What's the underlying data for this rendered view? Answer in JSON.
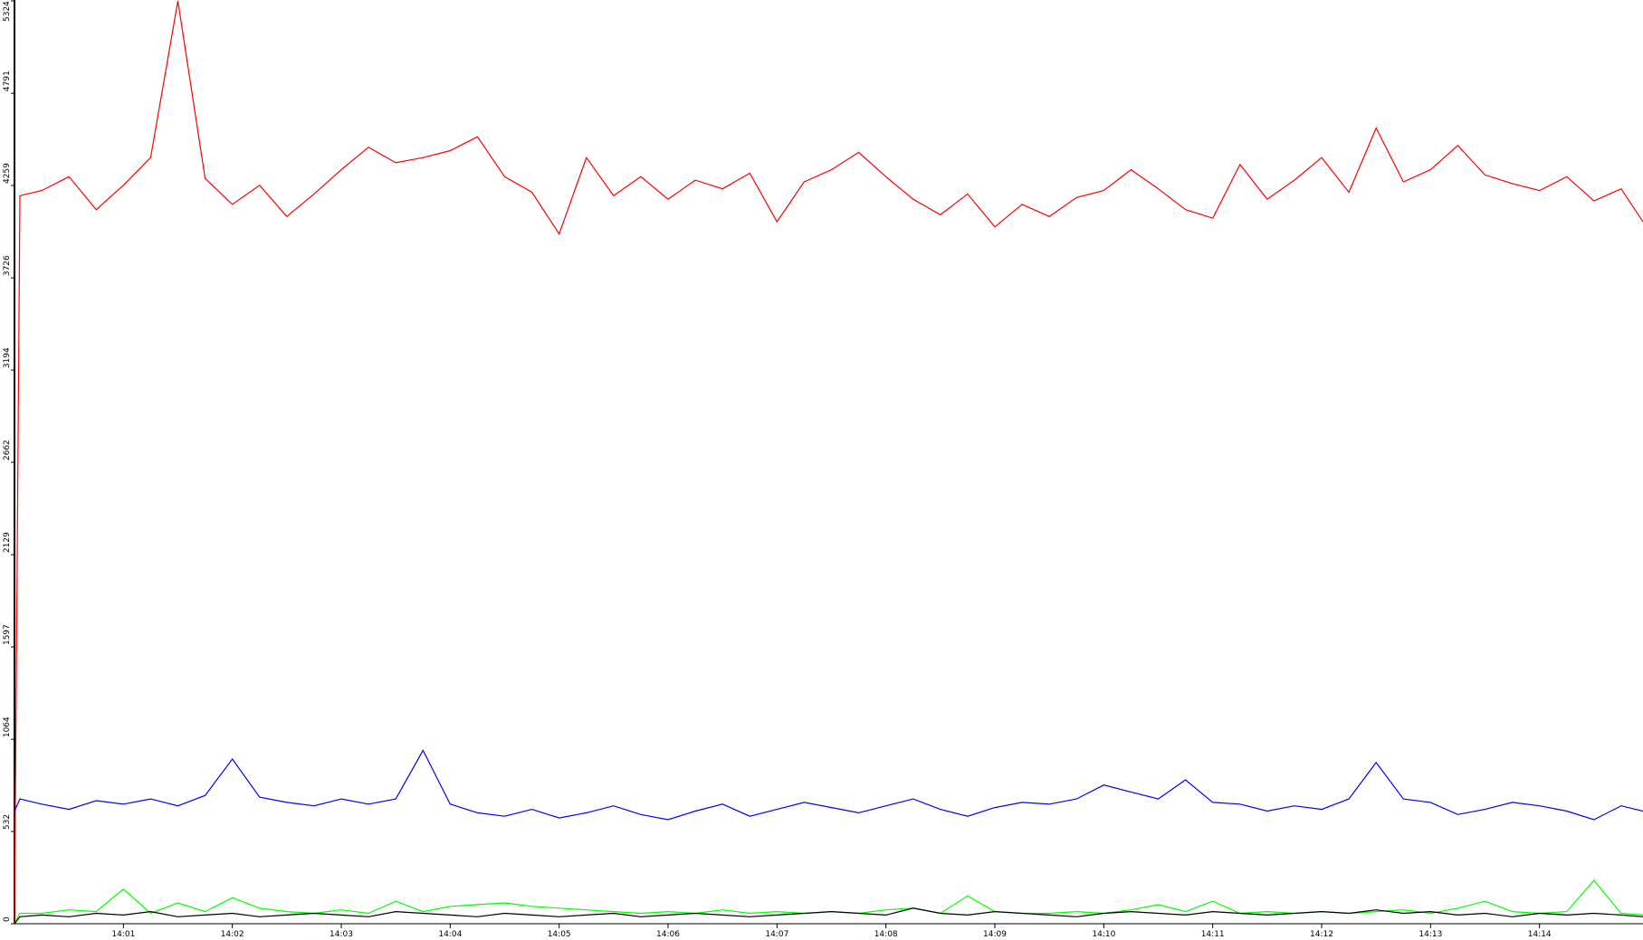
{
  "chart_data": {
    "type": "line",
    "x": [
      0,
      0.05,
      0.25,
      0.5,
      0.75,
      1,
      1.25,
      1.5,
      1.75,
      2,
      2.25,
      2.5,
      2.75,
      3,
      3.25,
      3.5,
      3.75,
      4,
      4.25,
      4.5,
      4.75,
      5,
      5.25,
      5.5,
      5.75,
      6,
      6.25,
      6.5,
      6.75,
      7,
      7.25,
      7.5,
      7.75,
      8,
      8.25,
      8.5,
      8.75,
      9,
      9.25,
      9.5,
      9.75,
      10,
      10.25,
      10.5,
      10.75,
      11,
      11.25,
      11.5,
      11.75,
      12,
      12.25,
      12.5,
      12.75,
      13,
      13.25,
      13.5,
      13.75,
      14,
      14.25,
      14.5,
      14.75,
      14.95
    ],
    "series": [
      {
        "color": "#ff0000",
        "values": [
          0,
          4200,
          4230,
          4310,
          4120,
          4260,
          4420,
          5324,
          4300,
          4150,
          4260,
          4080,
          4210,
          4350,
          4480,
          4390,
          4420,
          4460,
          4540,
          4310,
          4220,
          3980,
          4420,
          4200,
          4310,
          4180,
          4290,
          4240,
          4330,
          4050,
          4280,
          4350,
          4450,
          4310,
          4180,
          4090,
          4210,
          4020,
          4150,
          4080,
          4190,
          4230,
          4350,
          4240,
          4120,
          4070,
          4380,
          4180,
          4290,
          4420,
          4220,
          4590,
          4280,
          4350,
          4490,
          4320,
          4270,
          4230,
          4310,
          4170,
          4240,
          4050
        ]
      },
      {
        "color": "#0000ff",
        "values": [
          650,
          720,
          690,
          660,
          710,
          690,
          720,
          680,
          740,
          950,
          730,
          700,
          680,
          720,
          690,
          720,
          1000,
          690,
          640,
          620,
          660,
          610,
          640,
          680,
          630,
          600,
          650,
          690,
          620,
          660,
          700,
          670,
          640,
          680,
          720,
          660,
          620,
          670,
          700,
          690,
          720,
          800,
          760,
          720,
          830,
          700,
          690,
          650,
          680,
          660,
          720,
          930,
          720,
          700,
          630,
          660,
          700,
          680,
          650,
          600,
          680,
          650
        ]
      },
      {
        "color": "#00ff00",
        "values": [
          0,
          60,
          60,
          80,
          70,
          200,
          60,
          120,
          70,
          150,
          90,
          70,
          60,
          80,
          60,
          130,
          70,
          100,
          110,
          120,
          100,
          90,
          80,
          70,
          60,
          70,
          60,
          80,
          60,
          70,
          60,
          70,
          60,
          80,
          90,
          60,
          160,
          70,
          60,
          60,
          70,
          60,
          80,
          110,
          70,
          130,
          60,
          70,
          60,
          70,
          60,
          70,
          80,
          60,
          90,
          130,
          70,
          60,
          70,
          250,
          60,
          50
        ]
      },
      {
        "color": "#000000",
        "values": [
          0,
          40,
          50,
          40,
          60,
          50,
          70,
          40,
          50,
          60,
          40,
          50,
          60,
          50,
          40,
          70,
          60,
          50,
          40,
          60,
          50,
          40,
          50,
          60,
          40,
          50,
          60,
          50,
          40,
          50,
          60,
          70,
          60,
          50,
          90,
          60,
          50,
          70,
          60,
          50,
          40,
          60,
          70,
          60,
          50,
          70,
          60,
          50,
          60,
          70,
          60,
          80,
          60,
          70,
          50,
          60,
          40,
          60,
          50,
          60,
          50,
          40
        ]
      }
    ],
    "xlim": [
      0,
      14.95
    ],
    "xticks": [
      {
        "value": 1,
        "label": "14:01"
      },
      {
        "value": 2,
        "label": "14:02"
      },
      {
        "value": 3,
        "label": "14:03"
      },
      {
        "value": 4,
        "label": "14:04"
      },
      {
        "value": 5,
        "label": "14:05"
      },
      {
        "value": 6,
        "label": "14:06"
      },
      {
        "value": 7,
        "label": "14:07"
      },
      {
        "value": 8,
        "label": "14:08"
      },
      {
        "value": 9,
        "label": "14:09"
      },
      {
        "value": 10,
        "label": "14:10"
      },
      {
        "value": 11,
        "label": "14:11"
      },
      {
        "value": 12,
        "label": "14:12"
      },
      {
        "value": 13,
        "label": "14:13"
      },
      {
        "value": 14,
        "label": "14:14"
      }
    ],
    "ylim": [
      0,
      5324
    ],
    "yticks": [
      0,
      532,
      1064,
      1597,
      2129,
      2662,
      3194,
      3726,
      4259,
      4791,
      5324
    ]
  }
}
